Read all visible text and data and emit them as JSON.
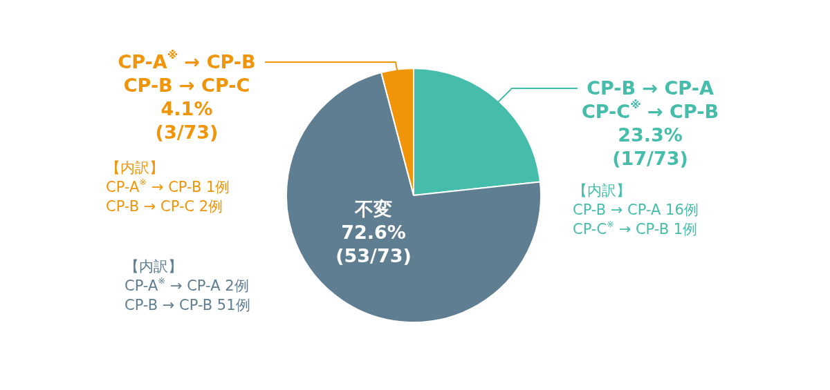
{
  "chart_data": {
    "type": "pie",
    "categories": [
      "CP-B → CP-A\nCP-C$^{※}$ → CP-B",
      "不変",
      "CP-A$^{※}$ → CP-B\nCP-B → CP-C"
    ],
    "values": [
      23.3,
      72.6,
      4.1
    ],
    "colors": [
      "#45bdaa",
      "#5f7e92",
      "#f0940a"
    ],
    "value_labels": [
      "23.3%\n(17/73)",
      "72.6%\n(53/73)",
      "4.1%\n(3/73)"
    ],
    "annotations": [
      "【内訳】\nCP-B → CP-A 16例\nCP-C$^{※}$ → CP-B 1例",
      "【内訳】\nCP-A$^{※}$ → CP-A 2例\nCP-B → CP-B 51例",
      "【内訳】\nCP-A$^{※}$ → CP-B 1例\nCP-B → CP-C 2例"
    ],
    "legend": false
  }
}
